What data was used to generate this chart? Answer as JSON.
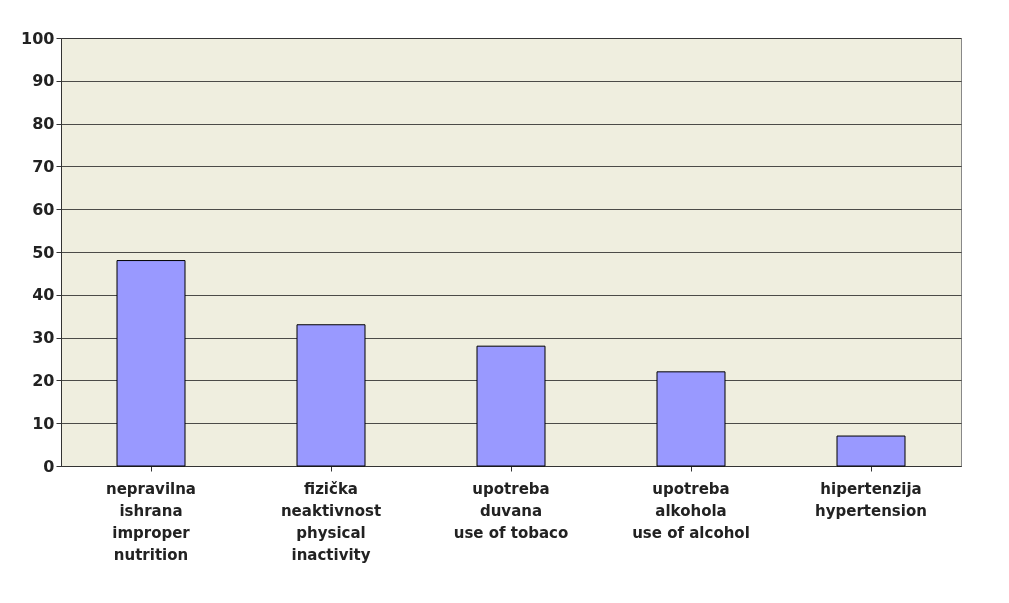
{
  "chart_data": {
    "type": "bar",
    "categories": [
      "nepravilna\nishrana\nimproper\nnutrition",
      "fizička\nneaktivnost\nphysical\ninactivity",
      "upotreba\nduvana\nuse of tobaco",
      "upotreba\nalkohola\nuse of alcohol",
      "hipertenzija\nhypertension"
    ],
    "values": [
      48,
      33,
      28,
      22,
      7
    ],
    "color": "#9999ff",
    "ylim": [
      0,
      100
    ],
    "yticks": [
      0,
      10,
      20,
      30,
      40,
      50,
      60,
      70,
      80,
      90,
      100
    ],
    "grid": "y"
  }
}
